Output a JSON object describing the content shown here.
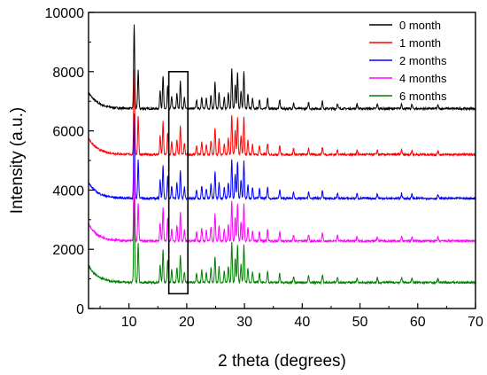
{
  "chart_data": {
    "type": "line",
    "title": "",
    "xlabel": "2 theta (degrees)",
    "ylabel": "Intensity (a.u.)",
    "xlim": [
      3,
      70
    ],
    "ylim": [
      0,
      10000
    ],
    "xticks": [
      10,
      20,
      30,
      40,
      50,
      60,
      70
    ],
    "yticks": [
      0,
      2000,
      4000,
      6000,
      8000,
      10000
    ],
    "grid": false,
    "legend_position": "top-right",
    "series": [
      {
        "name": "0 month",
        "color": "#000000",
        "baseline": 6750,
        "start": 7300
      },
      {
        "name": "1 month",
        "color": "#ff0000",
        "baseline": 5200,
        "start": 5750
      },
      {
        "name": "2 months",
        "color": "#0000ff",
        "baseline": 3720,
        "start": 4250
      },
      {
        "name": "4 months",
        "color": "#ff00ff",
        "baseline": 2280,
        "start": 2850
      },
      {
        "name": "6 months",
        "color": "#008000",
        "baseline": 880,
        "start": 1450
      }
    ],
    "peaks": [
      {
        "x": 10.9,
        "h": 2850
      },
      {
        "x": 11.6,
        "h": 1300
      },
      {
        "x": 15.4,
        "h": 620
      },
      {
        "x": 15.9,
        "h": 1100
      },
      {
        "x": 16.7,
        "h": 750
      },
      {
        "x": 17.4,
        "h": 420
      },
      {
        "x": 18.3,
        "h": 520
      },
      {
        "x": 18.9,
        "h": 950
      },
      {
        "x": 19.6,
        "h": 380
      },
      {
        "x": 21.7,
        "h": 300
      },
      {
        "x": 22.6,
        "h": 420
      },
      {
        "x": 23.4,
        "h": 350
      },
      {
        "x": 24.2,
        "h": 480
      },
      {
        "x": 24.9,
        "h": 900
      },
      {
        "x": 25.6,
        "h": 520
      },
      {
        "x": 26.5,
        "h": 380
      },
      {
        "x": 27.2,
        "h": 550
      },
      {
        "x": 27.8,
        "h": 1350
      },
      {
        "x": 28.4,
        "h": 820
      },
      {
        "x": 28.8,
        "h": 1250
      },
      {
        "x": 29.4,
        "h": 620
      },
      {
        "x": 29.9,
        "h": 1250
      },
      {
        "x": 30.6,
        "h": 480
      },
      {
        "x": 31.4,
        "h": 350
      },
      {
        "x": 32.6,
        "h": 320
      },
      {
        "x": 34.0,
        "h": 380
      },
      {
        "x": 36.1,
        "h": 300
      },
      {
        "x": 38.5,
        "h": 200
      },
      {
        "x": 41.1,
        "h": 220
      },
      {
        "x": 43.5,
        "h": 250
      },
      {
        "x": 46.1,
        "h": 180
      },
      {
        "x": 49.5,
        "h": 160
      },
      {
        "x": 53.0,
        "h": 150
      },
      {
        "x": 57.2,
        "h": 170
      },
      {
        "x": 59.0,
        "h": 140
      },
      {
        "x": 63.5,
        "h": 120
      }
    ],
    "highlight_box": {
      "x0": 16.9,
      "x1": 20.2,
      "y0": 500,
      "y1": 8000
    }
  }
}
